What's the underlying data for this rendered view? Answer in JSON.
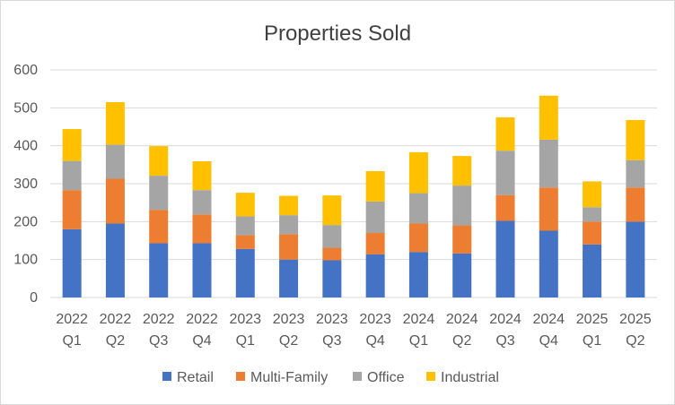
{
  "chart_data": {
    "type": "bar",
    "stacked": true,
    "title": "Properties Sold",
    "categories": [
      [
        "2022",
        "Q1"
      ],
      [
        "2022",
        "Q2"
      ],
      [
        "2022",
        "Q3"
      ],
      [
        "2022",
        "Q4"
      ],
      [
        "2023",
        "Q1"
      ],
      [
        "2023",
        "Q2"
      ],
      [
        "2023",
        "Q3"
      ],
      [
        "2023",
        "Q4"
      ],
      [
        "2024",
        "Q1"
      ],
      [
        "2024",
        "Q2"
      ],
      [
        "2024",
        "Q3"
      ],
      [
        "2024",
        "Q4"
      ],
      [
        "2025",
        "Q1"
      ],
      [
        "2025",
        "Q2"
      ]
    ],
    "series": [
      {
        "name": "Retail",
        "color": "#4472C4",
        "values": [
          180,
          195,
          143,
          143,
          128,
          100,
          98,
          114,
          120,
          116,
          202,
          176,
          140,
          200
        ]
      },
      {
        "name": "Multi-Family",
        "color": "#ED7D31",
        "values": [
          103,
          118,
          88,
          76,
          36,
          67,
          33,
          56,
          75,
          74,
          68,
          114,
          60,
          90
        ]
      },
      {
        "name": "Office",
        "color": "#A5A5A5",
        "values": [
          77,
          90,
          90,
          64,
          50,
          50,
          60,
          83,
          80,
          105,
          117,
          126,
          38,
          72
        ]
      },
      {
        "name": "Industrial",
        "color": "#FFC000",
        "values": [
          84,
          112,
          78,
          76,
          62,
          51,
          78,
          80,
          108,
          78,
          88,
          116,
          68,
          106
        ]
      }
    ],
    "yticks": [
      0,
      100,
      200,
      300,
      400,
      500,
      600
    ],
    "ylim": [
      0,
      600
    ],
    "grid": true,
    "legend_position": "bottom"
  }
}
